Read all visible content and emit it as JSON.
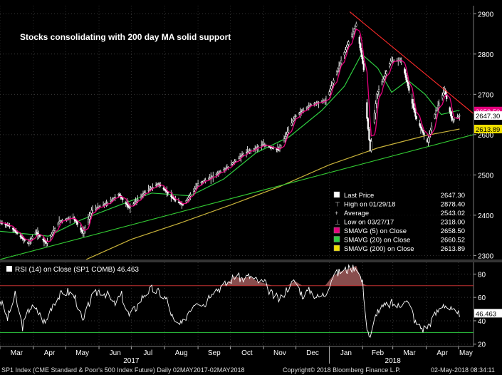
{
  "chart_data": [
    {
      "type": "candlestick",
      "title": "Stocks consolidating with 200 day MA solid support",
      "ylim": [
        2290,
        2920
      ],
      "y_ticks": [
        2300,
        2400,
        2500,
        2600,
        2700,
        2800,
        2900
      ],
      "x_start": "2017-03-01",
      "x_end": "2018-05-15",
      "price_path": [
        [
          "2017-03-01",
          2382
        ],
        [
          "2017-03-10",
          2373
        ],
        [
          "2017-03-21",
          2344
        ],
        [
          "2017-03-27",
          2330
        ],
        [
          "2017-04-03",
          2358
        ],
        [
          "2017-04-13",
          2330
        ],
        [
          "2017-04-25",
          2385
        ],
        [
          "2017-05-08",
          2395
        ],
        [
          "2017-05-17",
          2355
        ],
        [
          "2017-05-25",
          2412
        ],
        [
          "2017-06-09",
          2430
        ],
        [
          "2017-06-19",
          2452
        ],
        [
          "2017-06-29",
          2418
        ],
        [
          "2017-07-14",
          2458
        ],
        [
          "2017-07-26",
          2478
        ],
        [
          "2017-08-10",
          2438
        ],
        [
          "2017-08-18",
          2425
        ],
        [
          "2017-09-01",
          2478
        ],
        [
          "2017-09-12",
          2492
        ],
        [
          "2017-09-29",
          2520
        ],
        [
          "2017-10-13",
          2552
        ],
        [
          "2017-10-31",
          2575
        ],
        [
          "2017-11-15",
          2562
        ],
        [
          "2017-11-30",
          2645
        ],
        [
          "2017-12-15",
          2675
        ],
        [
          "2017-12-29",
          2685
        ],
        [
          "2018-01-12",
          2785
        ],
        [
          "2018-01-26",
          2875
        ],
        [
          "2018-02-02",
          2760
        ],
        [
          "2018-02-05",
          2640
        ],
        [
          "2018-02-08",
          2560
        ],
        [
          "2018-02-14",
          2700
        ],
        [
          "2018-02-27",
          2782
        ],
        [
          "2018-03-09",
          2785
        ],
        [
          "2018-03-22",
          2645
        ],
        [
          "2018-04-02",
          2582
        ],
        [
          "2018-04-10",
          2660
        ],
        [
          "2018-04-18",
          2710
        ],
        [
          "2018-04-25",
          2635
        ],
        [
          "2018-05-02",
          2647.3
        ]
      ],
      "trendlines": [
        {
          "color": "#ff2a2a",
          "points": [
            [
              "2018-01-20",
              2905
            ],
            [
              "2018-05-15",
              2652
            ]
          ]
        },
        {
          "color": "#33cc33",
          "points": [
            [
              "2017-03-01",
              2290
            ],
            [
              "2018-05-15",
              2600
            ]
          ]
        }
      ],
      "sma20": [
        [
          "2017-03-01",
          2360
        ],
        [
          "2017-04-15",
          2348
        ],
        [
          "2017-05-15",
          2388
        ],
        [
          "2017-06-20",
          2425
        ],
        [
          "2017-07-20",
          2455
        ],
        [
          "2017-08-25",
          2448
        ],
        [
          "2017-09-25",
          2490
        ],
        [
          "2017-10-25",
          2555
        ],
        [
          "2017-11-25",
          2595
        ],
        [
          "2017-12-25",
          2660
        ],
        [
          "2018-01-15",
          2720
        ],
        [
          "2018-01-31",
          2800
        ],
        [
          "2018-02-15",
          2765
        ],
        [
          "2018-02-28",
          2705
        ],
        [
          "2018-03-15",
          2735
        ],
        [
          "2018-03-31",
          2700
        ],
        [
          "2018-04-15",
          2650
        ],
        [
          "2018-05-02",
          2660.52
        ]
      ],
      "sma200": [
        [
          "2017-05-20",
          2290
        ],
        [
          "2017-07-01",
          2340
        ],
        [
          "2017-08-15",
          2380
        ],
        [
          "2017-10-01",
          2425
        ],
        [
          "2017-11-15",
          2470
        ],
        [
          "2018-01-01",
          2525
        ],
        [
          "2018-02-15",
          2567
        ],
        [
          "2018-04-01",
          2598
        ],
        [
          "2018-05-02",
          2613.89
        ]
      ],
      "price_tags": [
        {
          "value": 2658.5,
          "label": "2658.50",
          "color": "#e5007d",
          "text_color": "#ffffff"
        },
        {
          "value": 2647.3,
          "label": "2647.30",
          "color": "#ffffff",
          "text_color": "#000000"
        },
        {
          "value": 2613.89,
          "label": "2613.89",
          "color": "#f0e000",
          "text_color": "#000000"
        }
      ],
      "legend": [
        {
          "marker": "box",
          "color": "#ffffff",
          "label": "Last Price",
          "value": "2647.30"
        },
        {
          "marker": "high",
          "color": "#ffffff",
          "label": "High on 01/29/18",
          "value": "2878.40"
        },
        {
          "marker": "avg",
          "color": "#ffffff",
          "label": "Average",
          "value": "2543.02"
        },
        {
          "marker": "low",
          "color": "#ffffff",
          "label": "Low on 03/27/17",
          "value": "2318.00"
        },
        {
          "marker": "box",
          "color": "#e5007d",
          "label": "SMAVG (5) on Close",
          "value": "2658.50"
        },
        {
          "marker": "box",
          "color": "#2ecc40",
          "label": "SMAVG (20) on Close",
          "value": "2660.52"
        },
        {
          "marker": "box",
          "color": "#f0e000",
          "label": "SMAVG (200) on Close",
          "value": "2613.89"
        }
      ]
    },
    {
      "type": "line",
      "title": "RSI (14) on Close (SP1 COMB) 46.463",
      "ylim": [
        18,
        90
      ],
      "y_ticks": [
        20,
        40,
        60,
        80
      ],
      "levels": [
        70,
        30
      ],
      "last_value": "46.463",
      "rsi_path": [
        [
          "2017-03-01",
          58
        ],
        [
          "2017-03-08",
          42
        ],
        [
          "2017-03-15",
          62
        ],
        [
          "2017-03-22",
          35
        ],
        [
          "2017-03-29",
          52
        ],
        [
          "2017-04-05",
          48
        ],
        [
          "2017-04-12",
          38
        ],
        [
          "2017-04-19",
          55
        ],
        [
          "2017-04-26",
          62
        ],
        [
          "2017-05-03",
          65
        ],
        [
          "2017-05-10",
          60
        ],
        [
          "2017-05-17",
          38
        ],
        [
          "2017-05-24",
          58
        ],
        [
          "2017-06-01",
          66
        ],
        [
          "2017-06-08",
          63
        ],
        [
          "2017-06-15",
          54
        ],
        [
          "2017-06-22",
          62
        ],
        [
          "2017-06-29",
          44
        ],
        [
          "2017-07-06",
          52
        ],
        [
          "2017-07-13",
          63
        ],
        [
          "2017-07-20",
          67
        ],
        [
          "2017-07-27",
          64
        ],
        [
          "2017-08-03",
          58
        ],
        [
          "2017-08-10",
          38
        ],
        [
          "2017-08-17",
          36
        ],
        [
          "2017-08-24",
          50
        ],
        [
          "2017-08-31",
          58
        ],
        [
          "2017-09-07",
          54
        ],
        [
          "2017-09-14",
          66
        ],
        [
          "2017-09-21",
          68
        ],
        [
          "2017-09-28",
          72
        ],
        [
          "2017-10-05",
          78
        ],
        [
          "2017-10-12",
          76
        ],
        [
          "2017-10-19",
          78
        ],
        [
          "2017-10-26",
          74
        ],
        [
          "2017-11-02",
          72
        ],
        [
          "2017-11-09",
          62
        ],
        [
          "2017-11-16",
          58
        ],
        [
          "2017-11-23",
          68
        ],
        [
          "2017-11-30",
          74
        ],
        [
          "2017-12-07",
          62
        ],
        [
          "2017-12-14",
          66
        ],
        [
          "2017-12-21",
          60
        ],
        [
          "2017-12-28",
          63
        ],
        [
          "2018-01-04",
          78
        ],
        [
          "2018-01-11",
          82
        ],
        [
          "2018-01-18",
          84
        ],
        [
          "2018-01-26",
          87
        ],
        [
          "2018-02-01",
          72
        ],
        [
          "2018-02-05",
          35
        ],
        [
          "2018-02-08",
          24
        ],
        [
          "2018-02-14",
          48
        ],
        [
          "2018-02-21",
          52
        ],
        [
          "2018-02-28",
          55
        ],
        [
          "2018-03-07",
          52
        ],
        [
          "2018-03-12",
          60
        ],
        [
          "2018-03-19",
          48
        ],
        [
          "2018-03-22",
          38
        ],
        [
          "2018-03-29",
          33
        ],
        [
          "2018-04-03",
          36
        ],
        [
          "2018-04-10",
          46
        ],
        [
          "2018-04-17",
          55
        ],
        [
          "2018-04-23",
          50
        ],
        [
          "2018-04-30",
          44
        ],
        [
          "2018-05-02",
          46.463
        ]
      ]
    }
  ],
  "x_axis": {
    "months": [
      {
        "label": "Mar",
        "date": "2017-03-01"
      },
      {
        "label": "Apr",
        "date": "2017-04-01"
      },
      {
        "label": "May",
        "date": "2017-05-01"
      },
      {
        "label": "Jun",
        "date": "2017-06-01"
      },
      {
        "label": "Jul",
        "date": "2017-07-01"
      },
      {
        "label": "Aug",
        "date": "2017-08-01"
      },
      {
        "label": "Sep",
        "date": "2017-09-01"
      },
      {
        "label": "Oct",
        "date": "2017-10-01"
      },
      {
        "label": "Nov",
        "date": "2017-11-01"
      },
      {
        "label": "Dec",
        "date": "2017-12-01"
      },
      {
        "label": "Jan",
        "date": "2018-01-01"
      },
      {
        "label": "Feb",
        "date": "2018-02-01"
      },
      {
        "label": "Mar",
        "date": "2018-03-01"
      },
      {
        "label": "Apr",
        "date": "2018-04-01"
      },
      {
        "label": "May",
        "date": "2018-05-01"
      }
    ],
    "years": [
      {
        "label": "2017",
        "date": "2017-07-01"
      },
      {
        "label": "2018",
        "date": "2018-03-01"
      }
    ]
  },
  "footer": {
    "left": "SP1 Index (CME Standard & Poor's 500 Index Future)  Daily 02MAY2017-02MAY2018",
    "middle": "Copyright© 2018 Bloomberg Finance L.P.",
    "right": "02-May-2018 08:34:11"
  }
}
